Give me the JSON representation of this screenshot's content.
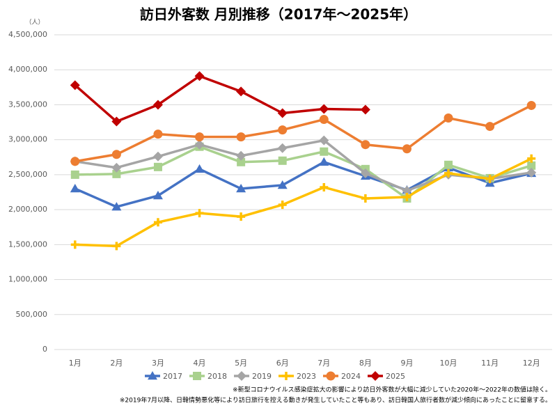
{
  "chart_data": {
    "type": "line",
    "title": "訪日外客数 月別推移（2017年～2025年）",
    "y_label": "（人）",
    "categories": [
      "1月",
      "2月",
      "3月",
      "4月",
      "5月",
      "6月",
      "7月",
      "8月",
      "9月",
      "10月",
      "11月",
      "12月"
    ],
    "series": [
      {
        "name": "2017",
        "color": "#4472c4",
        "marker": "triangle",
        "values": [
          2300000,
          2040000,
          2200000,
          2580000,
          2300000,
          2350000,
          2680000,
          2480000,
          2280000,
          2600000,
          2380000,
          2520000
        ]
      },
      {
        "name": "2018",
        "color": "#a9d18e",
        "marker": "square",
        "values": [
          2500000,
          2510000,
          2610000,
          2900000,
          2680000,
          2700000,
          2830000,
          2580000,
          2160000,
          2640000,
          2450000,
          2630000
        ]
      },
      {
        "name": "2019",
        "color": "#a5a5a5",
        "marker": "diamond",
        "values": [
          2690000,
          2600000,
          2760000,
          2930000,
          2770000,
          2880000,
          2990000,
          2520000,
          2270000,
          2500000,
          2440000,
          2530000
        ]
      },
      {
        "name": "2023",
        "color": "#ffc000",
        "marker": "plus",
        "values": [
          1500000,
          1480000,
          1820000,
          1950000,
          1900000,
          2070000,
          2320000,
          2160000,
          2180000,
          2520000,
          2440000,
          2730000
        ]
      },
      {
        "name": "2024",
        "color": "#ed7d31",
        "marker": "circle",
        "values": [
          2690000,
          2790000,
          3080000,
          3040000,
          3040000,
          3140000,
          3290000,
          2930000,
          2870000,
          3310000,
          3190000,
          3490000
        ]
      },
      {
        "name": "2025",
        "color": "#c00000",
        "marker": "diamond",
        "values": [
          3780000,
          3260000,
          3500000,
          3910000,
          3690000,
          3380000,
          3440000,
          3430000,
          null,
          null,
          null,
          null
        ]
      }
    ],
    "ylim": [
      0,
      4500000
    ],
    "yticks": [
      0,
      {
        "value": 500000,
        "label": "500,000"
      },
      {
        "value": 1000000,
        "label": "1,000,000"
      },
      {
        "value": 1500000,
        "label": "1,500,000"
      },
      {
        "value": 2000000,
        "label": "2,000,000"
      },
      {
        "value": 2500000,
        "label": "2,500,000"
      },
      {
        "value": 3000000,
        "label": "3,000,000"
      },
      {
        "value": 3500000,
        "label": "3,500,000"
      },
      {
        "value": 4000000,
        "label": "4,000,000"
      },
      {
        "value": 4500000,
        "label": "4,500,000"
      }
    ],
    "grid": true,
    "legend": "bottom",
    "notes": [
      "※新型コロナウイルス感染症拡大の影響により訪日外客数が大幅に減少していた2020年～2022年の数値は除く。",
      "※2019年7月以降、日韓情勢悪化等により訪日旅行を控える動きが発生していたこと等もあり、訪日韓国人旅行者数が減少傾向にあったことに留意する。"
    ]
  }
}
